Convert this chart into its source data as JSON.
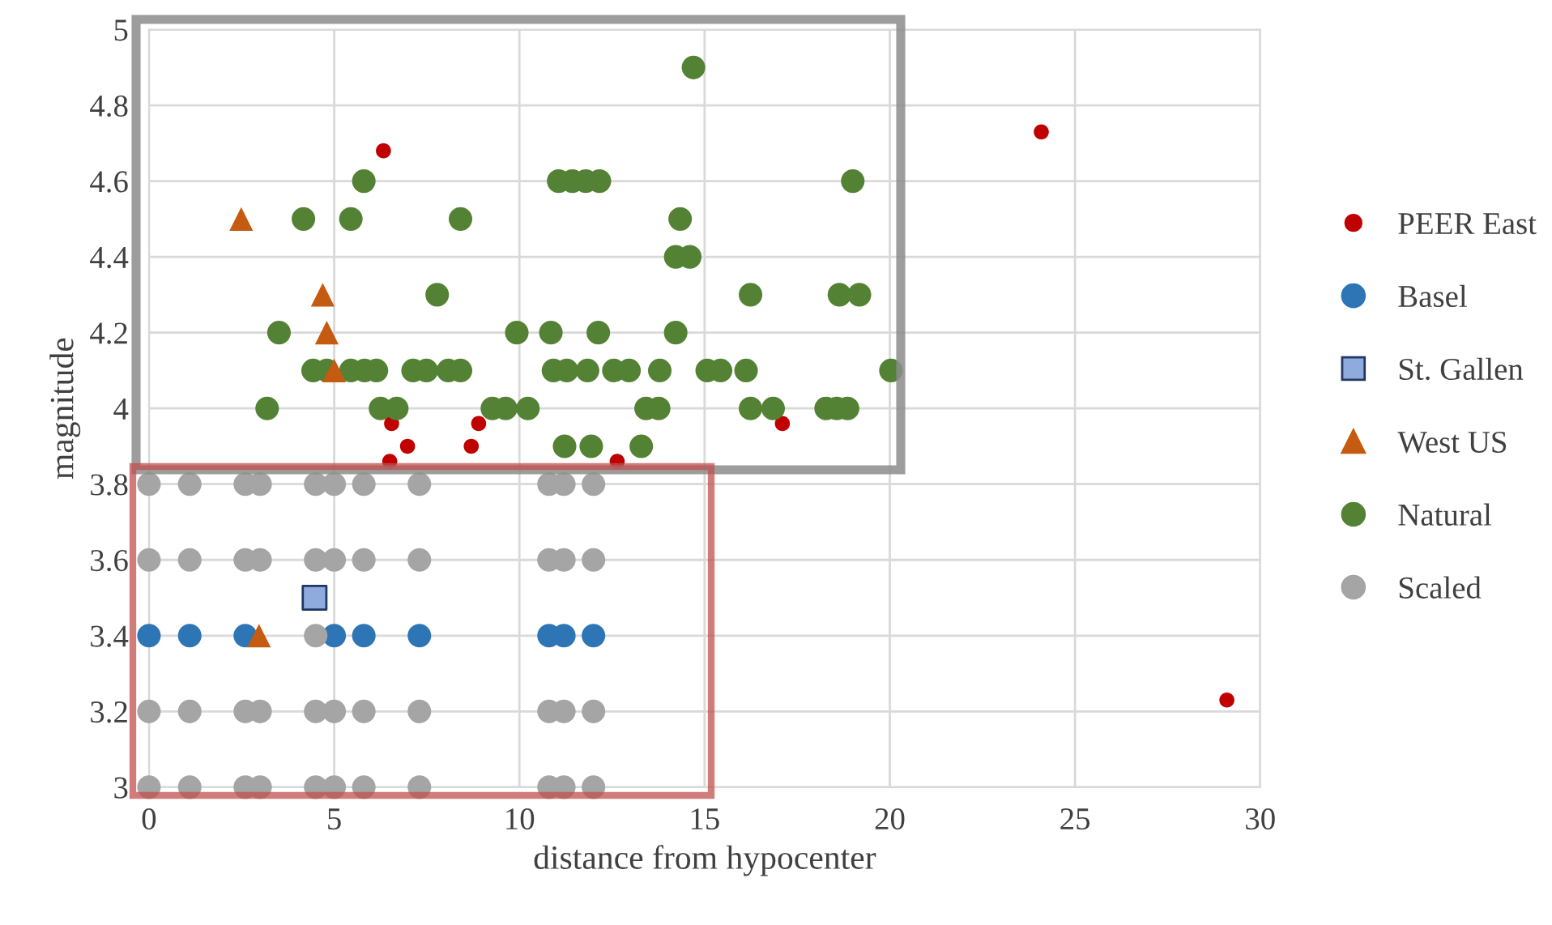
{
  "chart_data": {
    "type": "scatter",
    "xlabel": "distance from hypocenter",
    "ylabel": "magnitude",
    "xlim": [
      0,
      30
    ],
    "xticks": [
      0,
      5,
      10,
      15,
      20,
      25,
      30
    ],
    "ylim": [
      3,
      5
    ],
    "yticks": [
      3,
      3.2,
      3.4,
      3.6,
      3.8,
      4,
      4.2,
      4.4,
      4.6,
      4.8,
      5
    ],
    "grid": true,
    "legend": "right",
    "series": [
      {
        "name": "PEER East",
        "color": "#c00000",
        "marker": "circle",
        "x": [
          6.33,
          24.09,
          29.1,
          6.55,
          6.98,
          6.5,
          8.9,
          8.7,
          12.64,
          17.1
        ],
        "values": [
          4.68,
          4.73,
          3.23,
          3.96,
          3.9,
          3.86,
          3.96,
          3.9,
          3.86,
          3.96
        ]
      },
      {
        "name": "Basel",
        "color": "#2e75b6",
        "marker": "circle",
        "x": [
          0,
          1.1,
          2.6,
          5.0,
          5.8,
          7.3,
          10.8,
          11.2,
          12.0
        ],
        "values": [
          3.4,
          3.4,
          3.4,
          3.4,
          3.4,
          3.4,
          3.4,
          3.4,
          3.4
        ]
      },
      {
        "name": "St. Gallen",
        "color": "#8faadc",
        "marker": "square",
        "x": [
          4.47
        ],
        "values": [
          3.5
        ]
      },
      {
        "name": "West US",
        "color": "#c55a11",
        "marker": "triangle",
        "x": [
          2.49,
          4.69,
          4.8,
          5.0,
          2.97
        ],
        "values": [
          4.5,
          4.3,
          4.2,
          4.1,
          3.4
        ]
      },
      {
        "name": "Natural",
        "color": "#548235",
        "marker": "circle",
        "x": [
          14.7,
          5.8,
          11.06,
          11.43,
          11.79,
          12.16,
          19.0,
          4.17,
          5.45,
          8.41,
          14.34,
          14.22,
          14.6,
          7.78,
          16.24,
          18.64,
          19.18,
          3.51,
          9.93,
          10.85,
          12.13,
          14.22,
          4.43,
          4.8,
          5.45,
          5.82,
          6.14,
          7.13,
          7.49,
          8.08,
          8.41,
          10.92,
          11.28,
          11.84,
          12.55,
          12.96,
          13.79,
          15.07,
          15.43,
          16.12,
          20.03,
          3.19,
          6.25,
          6.69,
          9.27,
          9.63,
          10.23,
          13.42,
          13.76,
          16.24,
          16.85,
          18.28,
          18.57,
          18.86,
          11.22,
          11.94,
          13.29
        ],
        "values": [
          4.9,
          4.6,
          4.6,
          4.6,
          4.6,
          4.6,
          4.6,
          4.5,
          4.5,
          4.5,
          4.5,
          4.4,
          4.4,
          4.3,
          4.3,
          4.3,
          4.3,
          4.2,
          4.2,
          4.2,
          4.2,
          4.2,
          4.1,
          4.1,
          4.1,
          4.1,
          4.1,
          4.1,
          4.1,
          4.1,
          4.1,
          4.1,
          4.1,
          4.1,
          4.1,
          4.1,
          4.1,
          4.1,
          4.1,
          4.1,
          4.1,
          4,
          4,
          4,
          4,
          4,
          4,
          4,
          4,
          4,
          4,
          4,
          4,
          4,
          3.9,
          3.9,
          3.9
        ]
      },
      {
        "name": "Scaled",
        "color": "#a5a5a5",
        "marker": "circle",
        "x": [
          0,
          1.1,
          2.6,
          3.0,
          4.5,
          5.0,
          5.8,
          7.3,
          10.8,
          11.2,
          12.0,
          0,
          1.1,
          2.6,
          3.0,
          4.5,
          5.0,
          5.8,
          7.3,
          10.8,
          11.2,
          12.0,
          4.5,
          0,
          1.1,
          2.6,
          3.0,
          4.5,
          5.0,
          5.8,
          7.3,
          10.8,
          11.2,
          12.0,
          0,
          1.1,
          2.6,
          3.0,
          4.5,
          5.0,
          5.8,
          7.3,
          10.8,
          11.2,
          12.0
        ],
        "values": [
          3.8,
          3.8,
          3.8,
          3.8,
          3.8,
          3.8,
          3.8,
          3.8,
          3.8,
          3.8,
          3.8,
          3.6,
          3.6,
          3.6,
          3.6,
          3.6,
          3.6,
          3.6,
          3.6,
          3.6,
          3.6,
          3.6,
          3.4,
          3.2,
          3.2,
          3.2,
          3.2,
          3.2,
          3.2,
          3.2,
          3.2,
          3.2,
          3.2,
          3.2,
          3,
          3,
          3,
          3,
          3,
          3,
          3,
          3,
          3,
          3,
          3
        ]
      }
    ]
  }
}
